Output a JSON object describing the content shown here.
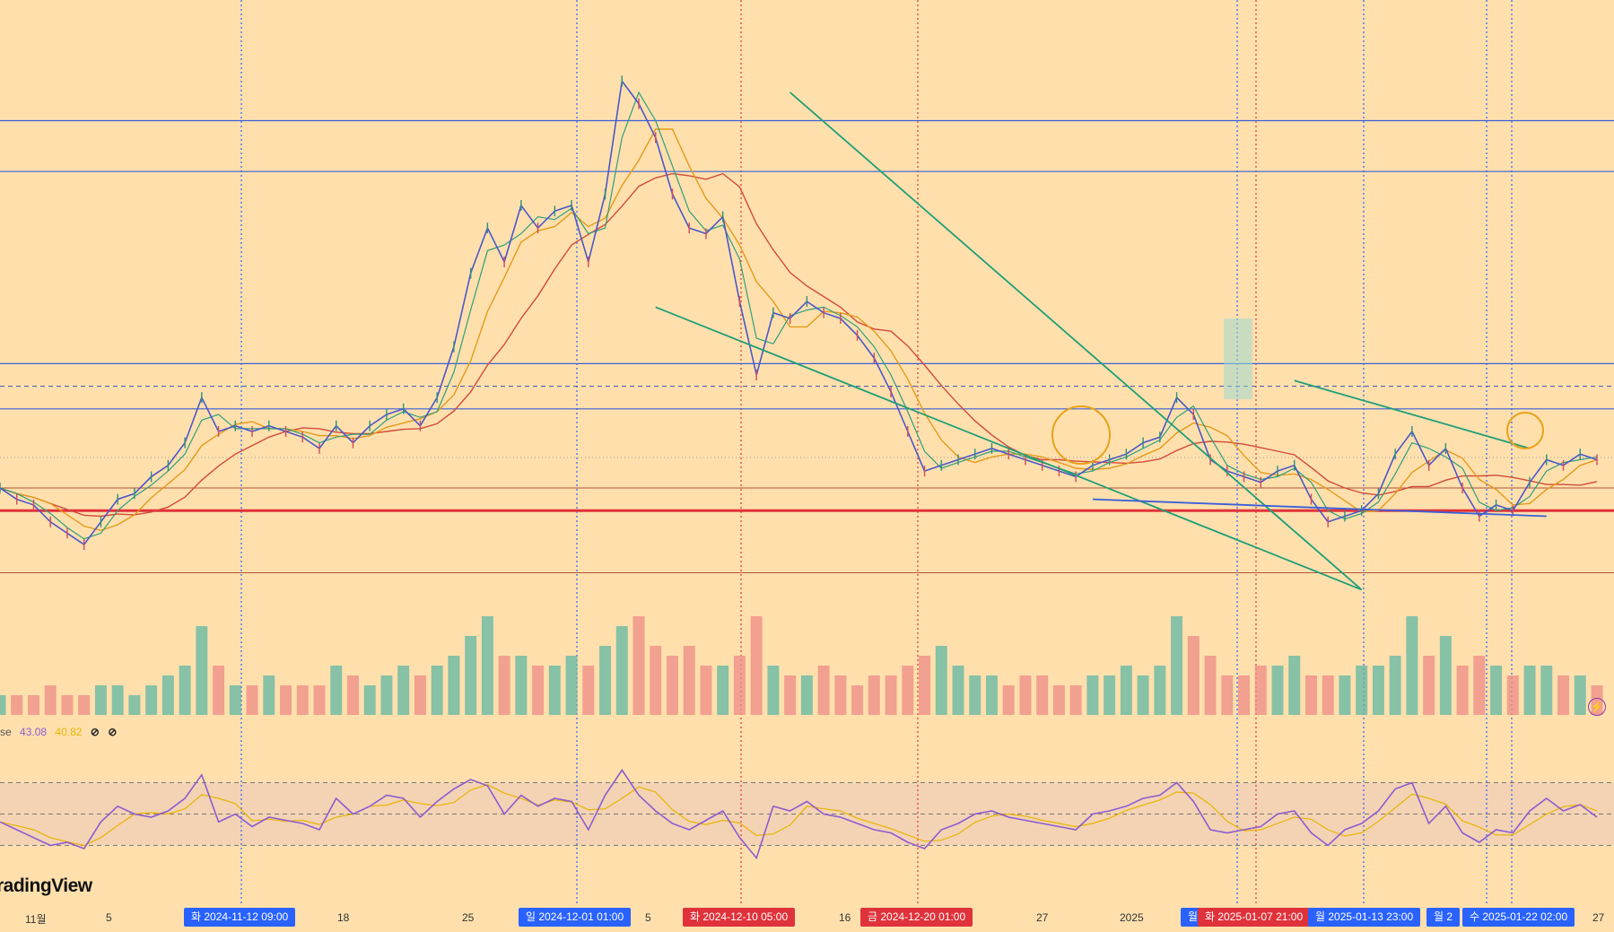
{
  "app": {
    "watermark": "radingView",
    "rsi_legend": {
      "name": "se",
      "value1": "43.08",
      "value2": "40.82",
      "icon1": "⊘",
      "icon2": "⊘"
    },
    "lightning_icon": "lightning-icon"
  },
  "colors": {
    "background": "#ffe0ad",
    "rsi_band": "#f3d3b4",
    "price_line": "#4b57c8",
    "ma_fast": "#2e9e7a",
    "ma_mid": "#e49a1a",
    "ma_slow": "#d24a3a",
    "support_red": "#e0323a",
    "h_blue": "#3a5fd8",
    "trend_green": "#1f9e77",
    "rsi_line": "#8e5bd0",
    "tag_blue": "#2962ff",
    "tag_red": "#e0323a"
  },
  "time_axis": {
    "labels": [
      "11월",
      "5",
      "18",
      "25",
      "5",
      "16",
      "27",
      "2025",
      "27"
    ],
    "tags": [
      {
        "text": "화 2024-11-12   09:00",
        "color": "blue"
      },
      {
        "text": "일 2024-12-01   01:00",
        "color": "blue"
      },
      {
        "text": "화 2024-12-10   05:00",
        "color": "red"
      },
      {
        "text": "금 2024-12-20   01:00",
        "color": "red"
      },
      {
        "text": "월",
        "color": "blue"
      },
      {
        "text": "화 2025-01-07   21:00",
        "color": "red"
      },
      {
        "text": "월 2025-01-13   23:00",
        "color": "blue"
      },
      {
        "text": "월 2",
        "color": "blue"
      },
      {
        "text": "수 2025-01-22   02:00",
        "color": "blue"
      }
    ]
  },
  "chart_data": [
    {
      "type": "line",
      "name": "price",
      "x_start": "2024-10-30",
      "x_end": "2025-01-27",
      "series": [
        {
          "values": [
            100,
            98,
            97,
            94,
            92,
            90,
            94,
            98,
            99,
            102,
            104,
            108,
            116,
            110,
            111,
            110,
            111,
            110,
            109,
            107,
            111,
            108,
            111,
            113,
            114,
            111,
            116,
            125,
            138,
            146,
            140,
            150,
            146,
            149,
            150,
            140,
            152,
            172,
            168,
            162,
            152,
            146,
            145,
            148,
            133,
            120,
            131,
            130,
            133,
            131,
            130,
            127,
            123,
            117,
            110,
            103,
            104,
            105,
            106,
            107,
            106,
            105,
            104,
            103,
            102,
            104,
            105,
            106,
            108,
            109,
            116,
            113,
            105,
            103,
            102,
            101,
            103,
            104,
            98,
            94,
            95,
            96,
            99,
            106,
            110,
            104,
            107,
            100,
            95,
            97,
            96,
            101,
            105,
            104,
            106,
            105
          ]
        }
      ],
      "reference_levels": [
        165,
        156,
        122,
        118,
        114,
        100,
        96,
        85
      ],
      "reference_level_styles": [
        "blue",
        "blue",
        "blue",
        "dashed",
        "blue",
        "brown",
        "red",
        "brown"
      ],
      "trendlines": [
        {
          "from": [
            {
              "i": 47
            },
            170
          ],
          "to": [
            {
              "i": 81
            },
            82
          ]
        },
        {
          "from": [
            {
              "i": 39
            },
            132
          ],
          "to": [
            {
              "i": 81
            },
            82
          ]
        },
        {
          "from": [
            {
              "i": 65
            },
            98
          ],
          "to": [
            {
              "i": 92
            },
            95
          ]
        },
        {
          "from": [
            {
              "i": 77
            },
            119
          ],
          "to": [
            {
              "i": 91
            },
            107
          ]
        }
      ]
    },
    {
      "type": "bar",
      "name": "volume",
      "values": [
        2,
        2,
        2,
        3,
        2,
        2,
        3,
        3,
        2,
        3,
        4,
        5,
        9,
        5,
        3,
        3,
        4,
        3,
        3,
        3,
        5,
        4,
        3,
        4,
        5,
        4,
        5,
        6,
        8,
        10,
        6,
        6,
        5,
        5,
        6,
        5,
        7,
        9,
        10,
        7,
        6,
        7,
        5,
        5,
        6,
        10,
        5,
        4,
        4,
        5,
        4,
        3,
        4,
        4,
        5,
        6,
        7,
        5,
        4,
        4,
        3,
        4,
        4,
        3,
        3,
        4,
        4,
        5,
        4,
        5,
        10,
        8,
        6,
        4,
        4,
        5,
        5,
        6,
        4,
        4,
        4,
        5,
        5,
        6,
        10,
        6,
        8,
        5,
        6,
        5,
        4,
        5,
        5,
        4,
        4,
        3
      ]
    },
    {
      "type": "line",
      "name": "rsi",
      "y_range": [
        0,
        100
      ],
      "levels": [
        70,
        50,
        30
      ],
      "values": [
        45,
        40,
        35,
        30,
        32,
        28,
        45,
        55,
        50,
        48,
        52,
        60,
        75,
        45,
        50,
        42,
        48,
        46,
        44,
        40,
        60,
        50,
        55,
        62,
        60,
        48,
        58,
        66,
        72,
        68,
        50,
        62,
        55,
        60,
        58,
        40,
        62,
        78,
        62,
        52,
        44,
        40,
        46,
        52,
        35,
        22,
        55,
        52,
        58,
        50,
        48,
        44,
        40,
        38,
        32,
        28,
        40,
        44,
        50,
        52,
        48,
        46,
        44,
        42,
        40,
        50,
        52,
        55,
        60,
        62,
        70,
        58,
        40,
        38,
        40,
        42,
        50,
        52,
        38,
        30,
        40,
        44,
        52,
        66,
        70,
        44,
        55,
        38,
        32,
        40,
        38,
        52,
        60,
        52,
        56,
        48
      ]
    }
  ]
}
